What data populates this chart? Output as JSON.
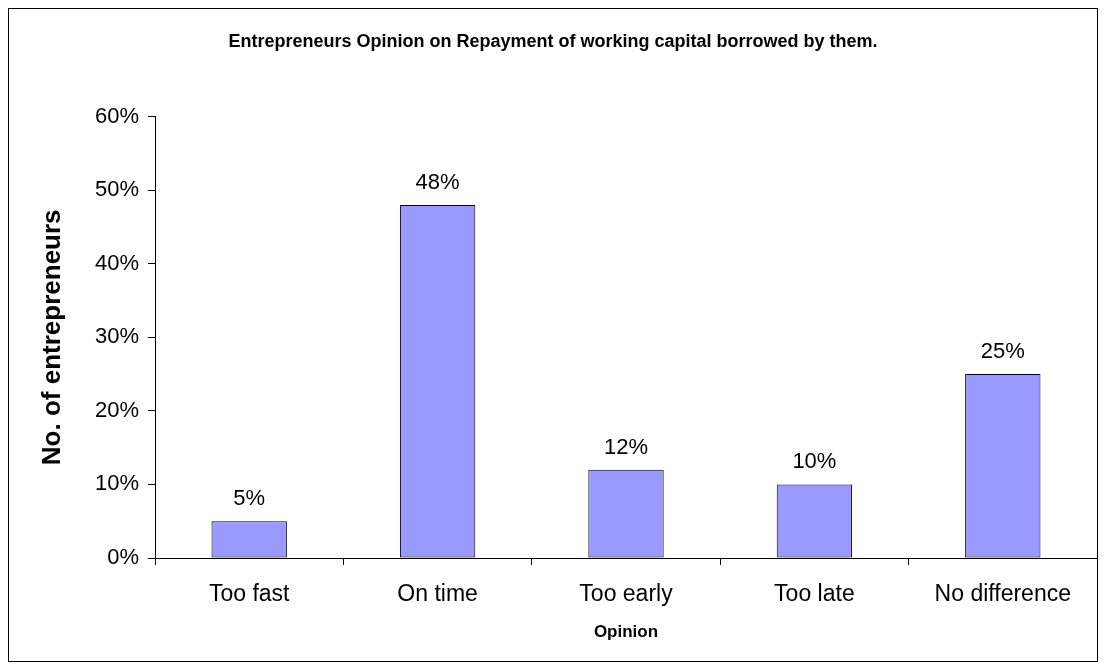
{
  "chart_data": {
    "type": "bar",
    "title": "Entrepreneurs Opinion on Repayment of working capital borrowed by them.",
    "xlabel": "Opinion",
    "ylabel": "No. of entrepreneurs",
    "categories": [
      "Too fast",
      "On time",
      "Too early",
      "Too late",
      "No difference"
    ],
    "values": [
      5,
      48,
      12,
      10,
      25
    ],
    "value_labels": [
      "5%",
      "48%",
      "12%",
      "10%",
      "25%"
    ],
    "color": "#9999ff",
    "ylim": [
      0,
      60
    ],
    "yticks": [
      {
        "value": 0,
        "label": "0%"
      },
      {
        "value": 10,
        "label": "10%"
      },
      {
        "value": 20,
        "label": "20%"
      },
      {
        "value": 30,
        "label": "30%"
      },
      {
        "value": 40,
        "label": "40%"
      },
      {
        "value": 50,
        "label": "50%"
      },
      {
        "value": 60,
        "label": "60%"
      }
    ]
  }
}
